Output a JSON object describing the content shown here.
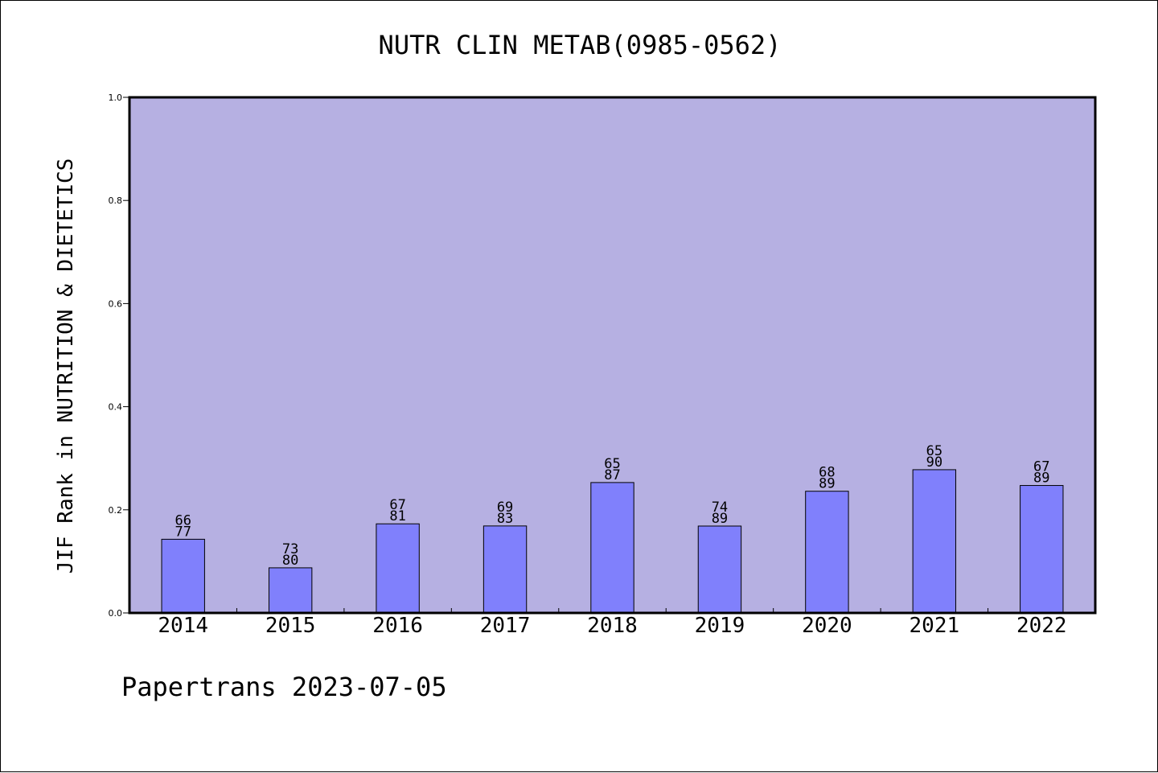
{
  "chart_data": {
    "type": "bar",
    "title": "NUTR CLIN METAB(0985-0562)",
    "xlabel": "",
    "ylabel": "JIF Rank in NUTRITION & DIETETICS",
    "ylim": [
      0.0,
      1.0
    ],
    "y_ticks": [
      "0.0",
      "0.2",
      "0.4",
      "0.6",
      "0.8",
      "1.0"
    ],
    "grid": false,
    "categories": [
      "2014",
      "2015",
      "2016",
      "2017",
      "2018",
      "2019",
      "2020",
      "2021",
      "2022"
    ],
    "values": [
      0.1429,
      0.0875,
      0.1728,
      0.1687,
      0.2529,
      0.1685,
      0.236,
      0.2778,
      0.2472
    ],
    "bar_labels_top": [
      "66",
      "73",
      "67",
      "69",
      "65",
      "74",
      "68",
      "65",
      "67"
    ],
    "bar_labels_bottom": [
      "77",
      "80",
      "81",
      "83",
      "87",
      "89",
      "89",
      "90",
      "89"
    ],
    "colors": {
      "plot_background": "#b6b0e2",
      "bar_fill": "#8080fc",
      "bar_edge": "#000000",
      "axis": "#000000"
    }
  },
  "footer": {
    "credit": "Papertrans 2023-07-05"
  }
}
